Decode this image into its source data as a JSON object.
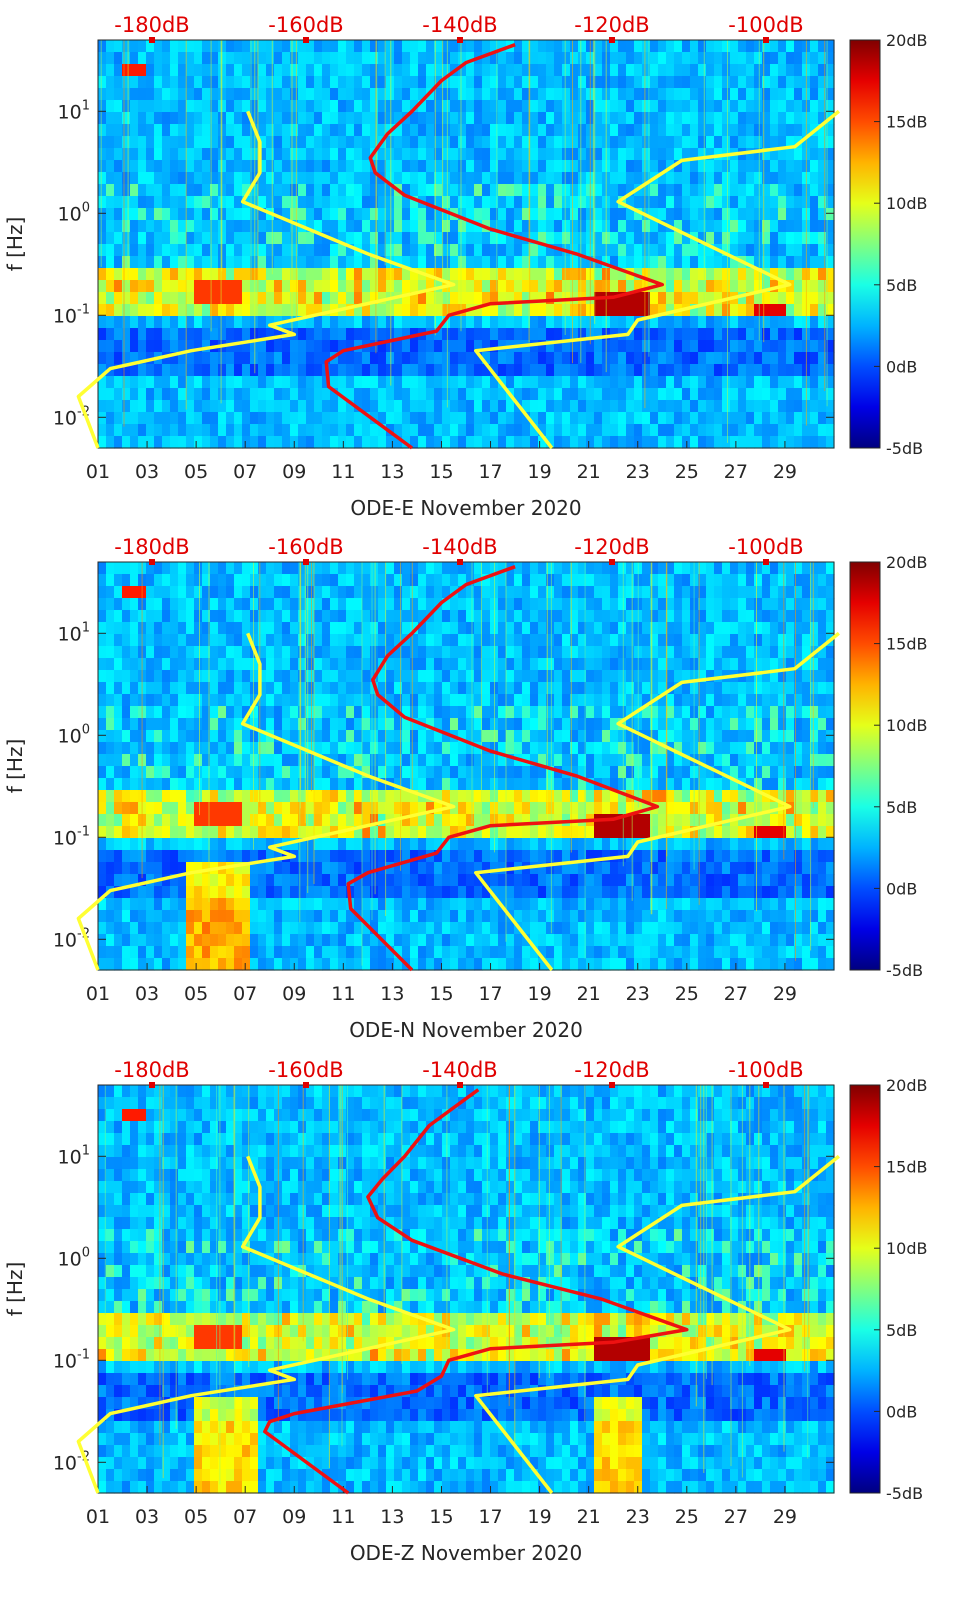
{
  "chart_data": [
    {
      "type": "heatmap",
      "panel": "ODE-E",
      "xlabel": "ODE-E November 2020",
      "ylabel": "f [Hz]",
      "x_ticks": [
        "01",
        "03",
        "05",
        "07",
        "09",
        "11",
        "13",
        "15",
        "17",
        "19",
        "21",
        "23",
        "25",
        "27",
        "29"
      ],
      "y_ticks": [
        "10^-2",
        "10^-1",
        "10^0",
        "10^1"
      ],
      "ylim_hz": [
        0.005,
        50
      ],
      "top_axis_ticks": [
        "-180dB",
        "-160dB",
        "-140dB",
        "-120dB",
        "-100dB"
      ],
      "colorbar_ticks": [
        "20dB",
        "15dB",
        "10dB",
        "5dB",
        "0dB",
        "-5dB"
      ],
      "colorbar_range_db": [
        -5,
        20
      ],
      "series": [
        {
          "color": "#ffff33",
          "points": [
            [
              1.0,
              0.005
            ],
            [
              0.2,
              0.016
            ],
            [
              1.5,
              0.03
            ],
            [
              4.8,
              0.045
            ],
            [
              9.0,
              0.065
            ],
            [
              8.0,
              0.08
            ],
            [
              15.5,
              0.2
            ],
            [
              12.0,
              0.4
            ],
            [
              6.9,
              1.3
            ],
            [
              7.6,
              2.5
            ],
            [
              7.6,
              5
            ],
            [
              7.1,
              10
            ]
          ]
        },
        {
          "color": "#ffff33",
          "points": [
            [
              19.5,
              0.005
            ],
            [
              16.4,
              0.045
            ],
            [
              22.6,
              0.065
            ],
            [
              23.0,
              0.09
            ],
            [
              29.2,
              0.2
            ],
            [
              22.2,
              1.3
            ],
            [
              24.8,
              3.3
            ],
            [
              29.4,
              4.5
            ],
            [
              31.2,
              10
            ]
          ]
        },
        {
          "color": "#ee1111",
          "points": [
            [
              13.8,
              0.005
            ],
            [
              10.4,
              0.02
            ],
            [
              10.3,
              0.035
            ],
            [
              11.0,
              0.045
            ],
            [
              14.8,
              0.07
            ],
            [
              15.3,
              0.1
            ],
            [
              17.0,
              0.13
            ],
            [
              22.0,
              0.15
            ],
            [
              24.0,
              0.2
            ],
            [
              20.5,
              0.4
            ],
            [
              17.0,
              0.7
            ],
            [
              13.5,
              1.5
            ],
            [
              12.3,
              2.5
            ],
            [
              12.1,
              3.5
            ],
            [
              12.8,
              6
            ],
            [
              13.8,
              10
            ],
            [
              15.0,
              20
            ],
            [
              16.0,
              30
            ],
            [
              18.0,
              45
            ]
          ]
        }
      ]
    },
    {
      "type": "heatmap",
      "panel": "ODE-N",
      "xlabel": "ODE-N November 2020",
      "ylabel": "f [Hz]",
      "x_ticks": [
        "01",
        "03",
        "05",
        "07",
        "09",
        "11",
        "13",
        "15",
        "17",
        "19",
        "21",
        "23",
        "25",
        "27",
        "29"
      ],
      "y_ticks": [
        "10^-2",
        "10^-1",
        "10^0",
        "10^1"
      ],
      "ylim_hz": [
        0.005,
        50
      ],
      "top_axis_ticks": [
        "-180dB",
        "-160dB",
        "-140dB",
        "-120dB",
        "-100dB"
      ],
      "colorbar_ticks": [
        "20dB",
        "15dB",
        "10dB",
        "5dB",
        "0dB",
        "-5dB"
      ],
      "colorbar_range_db": [
        -5,
        20
      ],
      "series": [
        {
          "color": "#ffff33",
          "points": [
            [
              1.0,
              0.005
            ],
            [
              0.2,
              0.016
            ],
            [
              1.5,
              0.03
            ],
            [
              4.8,
              0.045
            ],
            [
              9.0,
              0.065
            ],
            [
              8.0,
              0.08
            ],
            [
              15.5,
              0.2
            ],
            [
              12.0,
              0.4
            ],
            [
              6.9,
              1.3
            ],
            [
              7.6,
              2.5
            ],
            [
              7.6,
              5
            ],
            [
              7.1,
              10
            ]
          ]
        },
        {
          "color": "#ffff33",
          "points": [
            [
              19.5,
              0.005
            ],
            [
              16.4,
              0.045
            ],
            [
              22.6,
              0.065
            ],
            [
              23.0,
              0.09
            ],
            [
              29.2,
              0.2
            ],
            [
              22.2,
              1.3
            ],
            [
              24.8,
              3.3
            ],
            [
              29.4,
              4.5
            ],
            [
              31.2,
              10
            ]
          ]
        },
        {
          "color": "#ee1111",
          "points": [
            [
              13.8,
              0.005
            ],
            [
              11.3,
              0.02
            ],
            [
              11.2,
              0.035
            ],
            [
              12.0,
              0.045
            ],
            [
              14.8,
              0.07
            ],
            [
              15.3,
              0.1
            ],
            [
              17.0,
              0.13
            ],
            [
              22.0,
              0.15
            ],
            [
              23.8,
              0.2
            ],
            [
              20.5,
              0.4
            ],
            [
              17.0,
              0.7
            ],
            [
              13.5,
              1.5
            ],
            [
              12.4,
              2.5
            ],
            [
              12.2,
              3.5
            ],
            [
              12.8,
              6
            ],
            [
              13.8,
              10
            ],
            [
              15.0,
              20
            ],
            [
              16.0,
              30
            ],
            [
              18.0,
              45
            ]
          ]
        }
      ]
    },
    {
      "type": "heatmap",
      "panel": "ODE-Z",
      "xlabel": "ODE-Z November 2020",
      "ylabel": "f [Hz]",
      "x_ticks": [
        "01",
        "03",
        "05",
        "07",
        "09",
        "11",
        "13",
        "15",
        "17",
        "19",
        "21",
        "23",
        "25",
        "27",
        "29"
      ],
      "y_ticks": [
        "10^-2",
        "10^-1",
        "10^0",
        "10^1"
      ],
      "ylim_hz": [
        0.005,
        50
      ],
      "top_axis_ticks": [
        "-180dB",
        "-160dB",
        "-140dB",
        "-120dB",
        "-100dB"
      ],
      "colorbar_ticks": [
        "20dB",
        "15dB",
        "10dB",
        "5dB",
        "0dB",
        "-5dB"
      ],
      "colorbar_range_db": [
        -5,
        20
      ],
      "series": [
        {
          "color": "#ffff33",
          "points": [
            [
              1.0,
              0.005
            ],
            [
              0.2,
              0.016
            ],
            [
              1.5,
              0.03
            ],
            [
              4.8,
              0.045
            ],
            [
              9.0,
              0.065
            ],
            [
              8.0,
              0.08
            ],
            [
              15.5,
              0.2
            ],
            [
              12.0,
              0.4
            ],
            [
              6.9,
              1.3
            ],
            [
              7.6,
              2.5
            ],
            [
              7.6,
              5
            ],
            [
              7.1,
              10
            ]
          ]
        },
        {
          "color": "#ffff33",
          "points": [
            [
              19.5,
              0.005
            ],
            [
              16.4,
              0.045
            ],
            [
              22.6,
              0.065
            ],
            [
              23.0,
              0.09
            ],
            [
              29.2,
              0.2
            ],
            [
              22.2,
              1.3
            ],
            [
              24.8,
              3.3
            ],
            [
              29.4,
              4.5
            ],
            [
              31.2,
              10
            ]
          ]
        },
        {
          "color": "#ee1111",
          "points": [
            [
              11.2,
              0.005
            ],
            [
              7.8,
              0.02
            ],
            [
              8.0,
              0.025
            ],
            [
              9.0,
              0.03
            ],
            [
              14.0,
              0.05
            ],
            [
              15.0,
              0.07
            ],
            [
              15.3,
              0.1
            ],
            [
              17.0,
              0.13
            ],
            [
              22.0,
              0.15
            ],
            [
              25.0,
              0.2
            ],
            [
              21.5,
              0.4
            ],
            [
              17.5,
              0.7
            ],
            [
              13.8,
              1.5
            ],
            [
              12.4,
              2.5
            ],
            [
              12.0,
              4
            ],
            [
              12.6,
              6
            ],
            [
              13.5,
              10
            ],
            [
              14.5,
              20
            ],
            [
              15.5,
              30
            ],
            [
              16.5,
              45
            ]
          ]
        }
      ]
    }
  ]
}
